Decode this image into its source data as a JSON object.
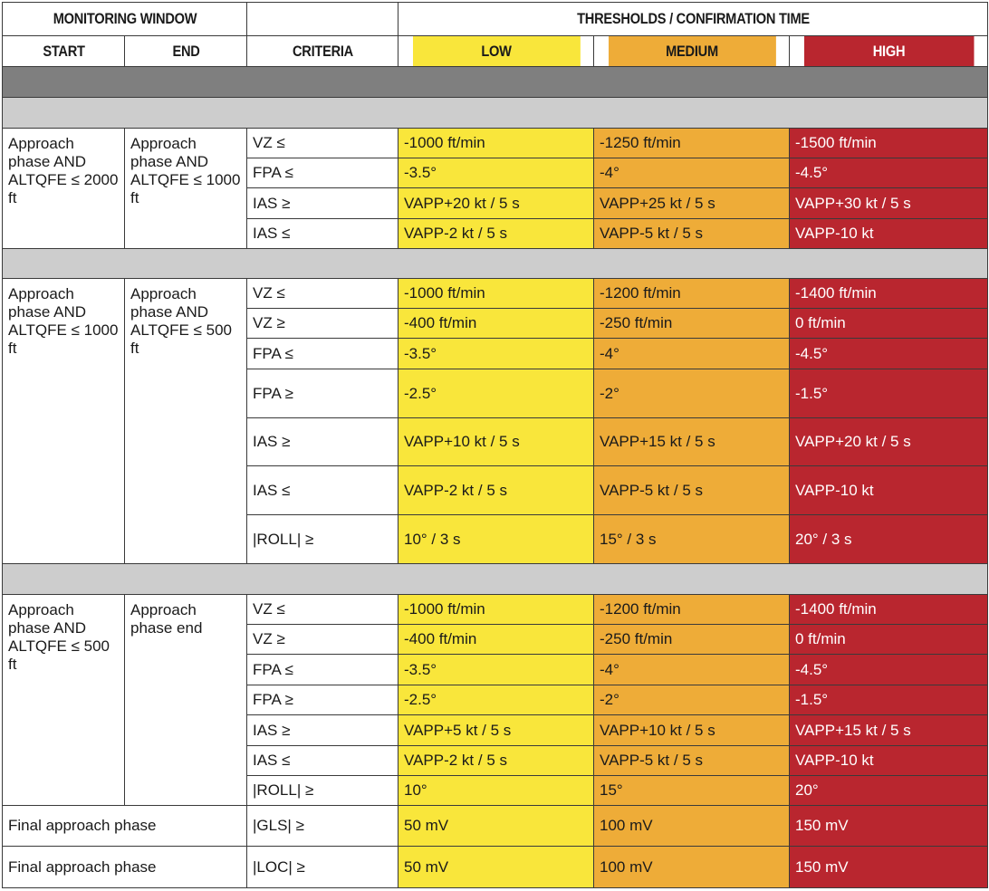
{
  "header": {
    "monitoring_window": "MONITORING WINDOW",
    "thresholds": "THRESHOLDS / CONFIRMATION TIME",
    "start": "START",
    "end": "END",
    "criteria": "CRITERIA",
    "low": "LOW",
    "medium": "MEDIUM",
    "high": "HIGH"
  },
  "colors": {
    "low": "#f9e63b",
    "medium": "#eeac38",
    "high": "#b9262f",
    "dark_separator": "#7f7f7f",
    "light_separator": "#cdcdcd"
  },
  "groups": [
    {
      "start": "Approach phase AND ALTQFE ≤ 2000 ft",
      "end": "Approach phase AND ALTQFE ≤ 1000 ft",
      "rows": [
        {
          "criteria": "VZ ≤",
          "low": "-1000 ft/min",
          "medium": "-1250 ft/min",
          "high": "-1500 ft/min"
        },
        {
          "criteria": "FPA ≤",
          "low": "-3.5°",
          "medium": "-4°",
          "high": "-4.5°"
        },
        {
          "criteria": "IAS ≥",
          "low": "VAPP+20 kt / 5 s",
          "medium": "VAPP+25 kt / 5 s",
          "high": "VAPP+30 kt / 5 s"
        },
        {
          "criteria": "IAS ≤",
          "low": "VAPP-2 kt / 5 s",
          "medium": "VAPP-5 kt / 5 s",
          "high": "VAPP-10 kt"
        }
      ]
    },
    {
      "start": "Approach phase AND ALTQFE ≤ 1000 ft",
      "end": "Approach phase AND ALTQFE ≤ 500 ft",
      "rows": [
        {
          "criteria": "VZ ≤",
          "low": "-1000 ft/min",
          "medium": "-1200 ft/min",
          "high": "-1400 ft/min"
        },
        {
          "criteria": "VZ ≥",
          "low": "-400 ft/min",
          "medium": "-250 ft/min",
          "high": "0 ft/min"
        },
        {
          "criteria": "FPA ≤",
          "low": "-3.5°",
          "medium": "-4°",
          "high": "-4.5°"
        },
        {
          "criteria": "FPA ≥",
          "low": "-2.5°",
          "medium": "-2°",
          "high": "-1.5°"
        },
        {
          "criteria": "IAS ≥",
          "low": "VAPP+10 kt / 5 s",
          "medium": "VAPP+15 kt / 5 s",
          "high": "VAPP+20 kt / 5 s"
        },
        {
          "criteria": "IAS ≤",
          "low": "VAPP-2 kt / 5 s",
          "medium": "VAPP-5 kt / 5 s",
          "high": "VAPP-10 kt"
        },
        {
          "criteria": "|ROLL| ≥",
          "low": "10° / 3 s",
          "medium": "15° / 3 s",
          "high": "20° / 3 s"
        }
      ]
    },
    {
      "start": "Approach phase AND ALTQFE ≤ 500 ft",
      "end": "Approach phase end",
      "rows": [
        {
          "criteria": "VZ ≤",
          "low": "-1000 ft/min",
          "medium": "-1200 ft/min",
          "high": "-1400 ft/min"
        },
        {
          "criteria": "VZ ≥",
          "low": "-400 ft/min",
          "medium": "-250 ft/min",
          "high": "0 ft/min"
        },
        {
          "criteria": "FPA ≤",
          "low": "-3.5°",
          "medium": "-4°",
          "high": "-4.5°"
        },
        {
          "criteria": "FPA ≥",
          "low": "-2.5°",
          "medium": "-2°",
          "high": "-1.5°"
        },
        {
          "criteria": "IAS ≥",
          "low": "VAPP+5 kt / 5 s",
          "medium": "VAPP+10 kt / 5 s",
          "high": "VAPP+15 kt / 5 s"
        },
        {
          "criteria": "IAS ≤",
          "low": "VAPP-2 kt / 5 s",
          "medium": "VAPP-5 kt / 5 s",
          "high": "VAPP-10 kt"
        },
        {
          "criteria": "|ROLL| ≥",
          "low": "10°",
          "medium": "15°",
          "high": "20°"
        }
      ]
    }
  ],
  "final_rows": [
    {
      "window": "Final approach phase",
      "criteria": "|GLS| ≥",
      "low": "50 mV",
      "medium": "100 mV",
      "high": "150 mV"
    },
    {
      "window": "Final approach phase",
      "criteria": "|LOC| ≥",
      "low": "50 mV",
      "medium": "100 mV",
      "high": "150 mV"
    }
  ]
}
